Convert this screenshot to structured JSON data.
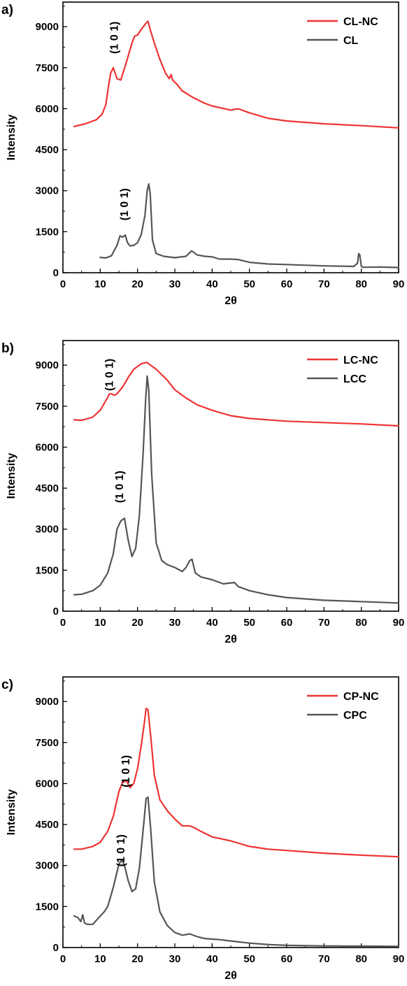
{
  "chart_data": [
    {
      "type": "line",
      "panel_label": "a)",
      "xlabel": "2θ",
      "ylabel": "Intensity",
      "xlim": [
        0,
        90
      ],
      "ylim": [
        0,
        9900
      ],
      "xticks": [
        0,
        10,
        20,
        30,
        40,
        50,
        60,
        70,
        80,
        90
      ],
      "yticks": [
        0,
        1500,
        3000,
        4500,
        6000,
        7500,
        9000
      ],
      "legend_position": "top-right",
      "series": [
        {
          "name": "CL-NC",
          "color": "#ee3333",
          "x": [
            3,
            6,
            9,
            10.5,
            11.5,
            12.3,
            12.8,
            13.5,
            14.5,
            15.5,
            17,
            18.5,
            19.2,
            20,
            21,
            22.1,
            22.8,
            23.5,
            24.5,
            26,
            27.5,
            28.5,
            29,
            29.4,
            30.5,
            32,
            35,
            38,
            40,
            45,
            47,
            50,
            55,
            60,
            70,
            80,
            90
          ],
          "y": [
            5350,
            5450,
            5600,
            5800,
            6150,
            6900,
            7300,
            7500,
            7100,
            7050,
            7700,
            8400,
            8650,
            8700,
            8900,
            9100,
            9200,
            8850,
            8400,
            7800,
            7300,
            7100,
            7250,
            7050,
            6900,
            6650,
            6400,
            6200,
            6100,
            5950,
            6000,
            5850,
            5650,
            5550,
            5450,
            5380,
            5300
          ]
        },
        {
          "name": "CL",
          "color": "#555555",
          "x": [
            10,
            11.5,
            13,
            14.5,
            15.3,
            16,
            16.7,
            17.3,
            18,
            19,
            20,
            21,
            22,
            22.6,
            23,
            23.4,
            24,
            25,
            27,
            30,
            33,
            34.5,
            36,
            38,
            40,
            42,
            45,
            47,
            50,
            55,
            60,
            70,
            78,
            79,
            79.3,
            79.6,
            80,
            80.5,
            85,
            90
          ],
          "y": [
            560,
            540,
            620,
            1000,
            1350,
            1300,
            1380,
            1100,
            980,
            1000,
            1100,
            1400,
            2100,
            3000,
            3250,
            2900,
            1200,
            700,
            600,
            550,
            600,
            800,
            650,
            600,
            580,
            500,
            500,
            480,
            380,
            320,
            300,
            250,
            230,
            350,
            700,
            650,
            230,
            200,
            210,
            190
          ]
        }
      ],
      "annotations": [
        {
          "text": "(1 0 1)",
          "x": 13.9,
          "y": 8600
        },
        {
          "text": "(1 0 1)",
          "x": 16.6,
          "y": 2500
        }
      ]
    },
    {
      "type": "line",
      "panel_label": "b)",
      "xlabel": "2θ",
      "ylabel": "Intensity",
      "xlim": [
        0,
        90
      ],
      "ylim": [
        0,
        9900
      ],
      "xticks": [
        0,
        10,
        20,
        30,
        40,
        50,
        60,
        70,
        80,
        90
      ],
      "yticks": [
        0,
        1500,
        3000,
        4500,
        6000,
        7500,
        9000
      ],
      "legend_position": "top-right",
      "series": [
        {
          "name": "LC-NC",
          "color": "#ee3333",
          "x": [
            3,
            5,
            8,
            10,
            11.5,
            12.5,
            13,
            13.8,
            14.5,
            16,
            17.5,
            19,
            21,
            22.5,
            23.5,
            25,
            26.5,
            28,
            30,
            33,
            36,
            40,
            45,
            50,
            60,
            70,
            80,
            90
          ],
          "y": [
            7000,
            6980,
            7100,
            7350,
            7700,
            7950,
            7950,
            7900,
            7950,
            8200,
            8550,
            8850,
            9050,
            9100,
            9000,
            8850,
            8650,
            8450,
            8100,
            7800,
            7550,
            7350,
            7150,
            7050,
            6950,
            6900,
            6850,
            6780
          ]
        },
        {
          "name": "LCC",
          "color": "#555555",
          "x": [
            3,
            5,
            8,
            10,
            12,
            13.5,
            14.5,
            15.5,
            16.5,
            17.5,
            18.5,
            19.5,
            20.5,
            21.5,
            22.2,
            22.6,
            23,
            23.8,
            25,
            26.5,
            28,
            30,
            32,
            33,
            34,
            34.6,
            35.5,
            37,
            40,
            43,
            46,
            47,
            50,
            55,
            60,
            70,
            80,
            90
          ],
          "y": [
            600,
            620,
            750,
            950,
            1400,
            2100,
            3000,
            3300,
            3400,
            2600,
            2000,
            2300,
            3500,
            5800,
            7800,
            8600,
            8100,
            5000,
            2500,
            1850,
            1700,
            1600,
            1450,
            1600,
            1850,
            1900,
            1400,
            1250,
            1150,
            1000,
            1050,
            900,
            750,
            600,
            500,
            400,
            350,
            300
          ]
        }
      ],
      "annotations": [
        {
          "text": "(1 0 1)",
          "x": 12.6,
          "y": 8650
        },
        {
          "text": "(1 0 1)",
          "x": 15.3,
          "y": 4550
        }
      ]
    },
    {
      "type": "line",
      "panel_label": "c)",
      "xlabel": "2θ",
      "ylabel": "Intensity",
      "xlim": [
        0,
        90
      ],
      "ylim": [
        0,
        9900
      ],
      "xticks": [
        0,
        10,
        20,
        30,
        40,
        50,
        60,
        70,
        80,
        90
      ],
      "yticks": [
        0,
        1500,
        3000,
        4500,
        6000,
        7500,
        9000
      ],
      "legend_position": "top-right",
      "series": [
        {
          "name": "CP-NC",
          "color": "#ee3333",
          "x": [
            3,
            5,
            8,
            10,
            12,
            13.5,
            15,
            16,
            17,
            18,
            19,
            20,
            21,
            21.8,
            22.3,
            22.8,
            23.5,
            24.5,
            26,
            28,
            30,
            32,
            34,
            35,
            37,
            40,
            45,
            50,
            55,
            60,
            70,
            80,
            90
          ],
          "y": [
            3600,
            3600,
            3700,
            3850,
            4250,
            4800,
            5700,
            6050,
            6100,
            5850,
            6000,
            6550,
            7400,
            8200,
            8750,
            8700,
            7800,
            6300,
            5400,
            5000,
            4700,
            4450,
            4450,
            4400,
            4250,
            4050,
            3900,
            3700,
            3600,
            3550,
            3450,
            3380,
            3320
          ]
        },
        {
          "name": "CPC",
          "color": "#555555",
          "x": [
            3,
            4,
            4.8,
            5.3,
            5.8,
            6.5,
            8,
            9,
            10,
            11,
            12,
            13.5,
            15,
            15.8,
            16.5,
            17.5,
            18.5,
            19.5,
            20.5,
            21.5,
            22.3,
            22.8,
            23.5,
            24.5,
            26,
            28,
            30,
            32,
            34,
            36,
            38,
            42,
            45,
            50,
            55,
            60,
            70,
            80,
            90
          ],
          "y": [
            1150,
            1100,
            950,
            1200,
            900,
            850,
            850,
            1000,
            1150,
            1300,
            1500,
            2200,
            3050,
            3200,
            3000,
            2450,
            2050,
            2150,
            2900,
            4300,
            5450,
            5500,
            4400,
            2400,
            1300,
            800,
            550,
            450,
            500,
            400,
            330,
            290,
            240,
            160,
            110,
            80,
            60,
            50,
            40
          ]
        }
      ],
      "annotations": [
        {
          "text": "(1 0 1)",
          "x": 17.0,
          "y": 6450
        },
        {
          "text": "(1 0 1)",
          "x": 15.7,
          "y": 3550
        }
      ]
    }
  ]
}
